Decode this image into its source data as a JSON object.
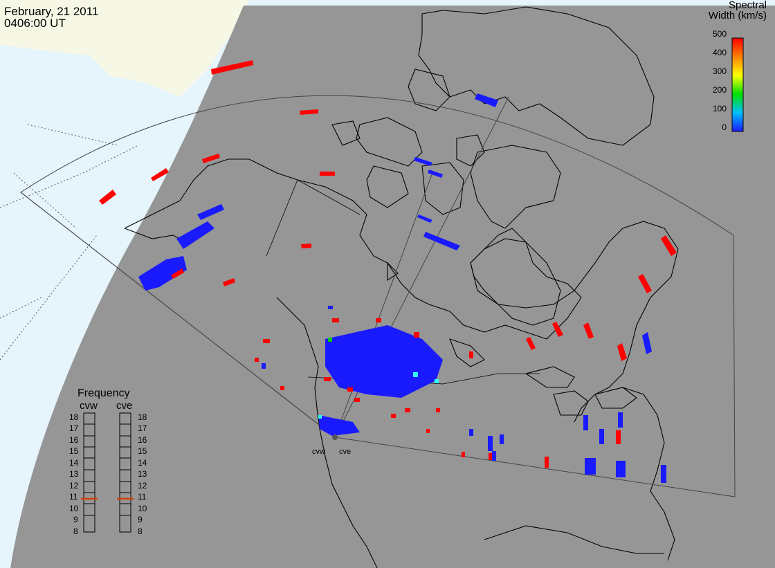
{
  "header": {
    "date": "February, 21 2011",
    "time": "0406:00 UT"
  },
  "colorbar": {
    "title_line1": "Spectral",
    "title_line2": "Width (km/s)",
    "ticks": [
      "500",
      "400",
      "300",
      "200",
      "100",
      "0"
    ],
    "stops": [
      "#1a1aff",
      "#00bfff",
      "#00e000",
      "#ffff00",
      "#ff8000",
      "#ff0000"
    ],
    "range": [
      0,
      500
    ]
  },
  "frequency": {
    "title": "Frequency",
    "radars": [
      "cvw",
      "cve"
    ],
    "ticks": [
      "18",
      "17",
      "16",
      "15",
      "14",
      "13",
      "12",
      "11",
      "10",
      "9",
      "8"
    ],
    "range_mhz": [
      8,
      18
    ],
    "values_mhz": {
      "cvw": 10.8,
      "cve": 10.8
    },
    "marker_color": "#d04000"
  },
  "sites": [
    "cvw",
    "cve"
  ],
  "colors": {
    "night_side": "#969696",
    "day_ocean": "#e6f4fb",
    "day_land": "#f7f7e6",
    "red": "#ff0000",
    "blue": "#1a1aff",
    "cyan": "#33ffff",
    "green": "#00cc00"
  }
}
